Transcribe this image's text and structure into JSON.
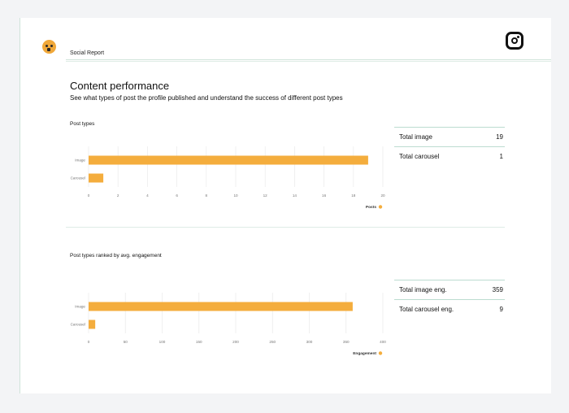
{
  "header": {
    "report_title": "Social Report",
    "logo_icon": "smiley-logo-icon",
    "platform_icon": "instagram-icon"
  },
  "section": {
    "title": "Content performance",
    "subtitle": "See what types of post the profile published and understand the success of different post types"
  },
  "colors": {
    "bar": "#f4ad3d",
    "accent_line": "#bcdcd0"
  },
  "post_types": {
    "label": "Post types",
    "stats": [
      {
        "label": "Total image",
        "value": "19"
      },
      {
        "label": "Total carousel",
        "value": "1"
      }
    ]
  },
  "engagement": {
    "label": "Post types ranked by avg. engagement",
    "stats": [
      {
        "label": "Total image eng.",
        "value": "359"
      },
      {
        "label": "Total carousel eng.",
        "value": "9"
      }
    ]
  },
  "chart_data": [
    {
      "type": "bar",
      "orientation": "horizontal",
      "categories": [
        "Image",
        "Carousel"
      ],
      "series": [
        {
          "name": "Posts",
          "values": [
            19,
            1
          ]
        }
      ],
      "xlim": [
        0,
        20
      ],
      "xticks": [
        0,
        2,
        4,
        6,
        8,
        10,
        12,
        14,
        16,
        18,
        20
      ],
      "legend": "bottom-right",
      "grid": true
    },
    {
      "type": "bar",
      "orientation": "horizontal",
      "categories": [
        "Image",
        "Carousel"
      ],
      "series": [
        {
          "name": "Engagement",
          "values": [
            359,
            9
          ]
        }
      ],
      "xlim": [
        0,
        400
      ],
      "xticks": [
        0,
        50,
        100,
        150,
        200,
        250,
        300,
        350,
        400
      ],
      "legend": "bottom-right",
      "grid": true
    }
  ]
}
